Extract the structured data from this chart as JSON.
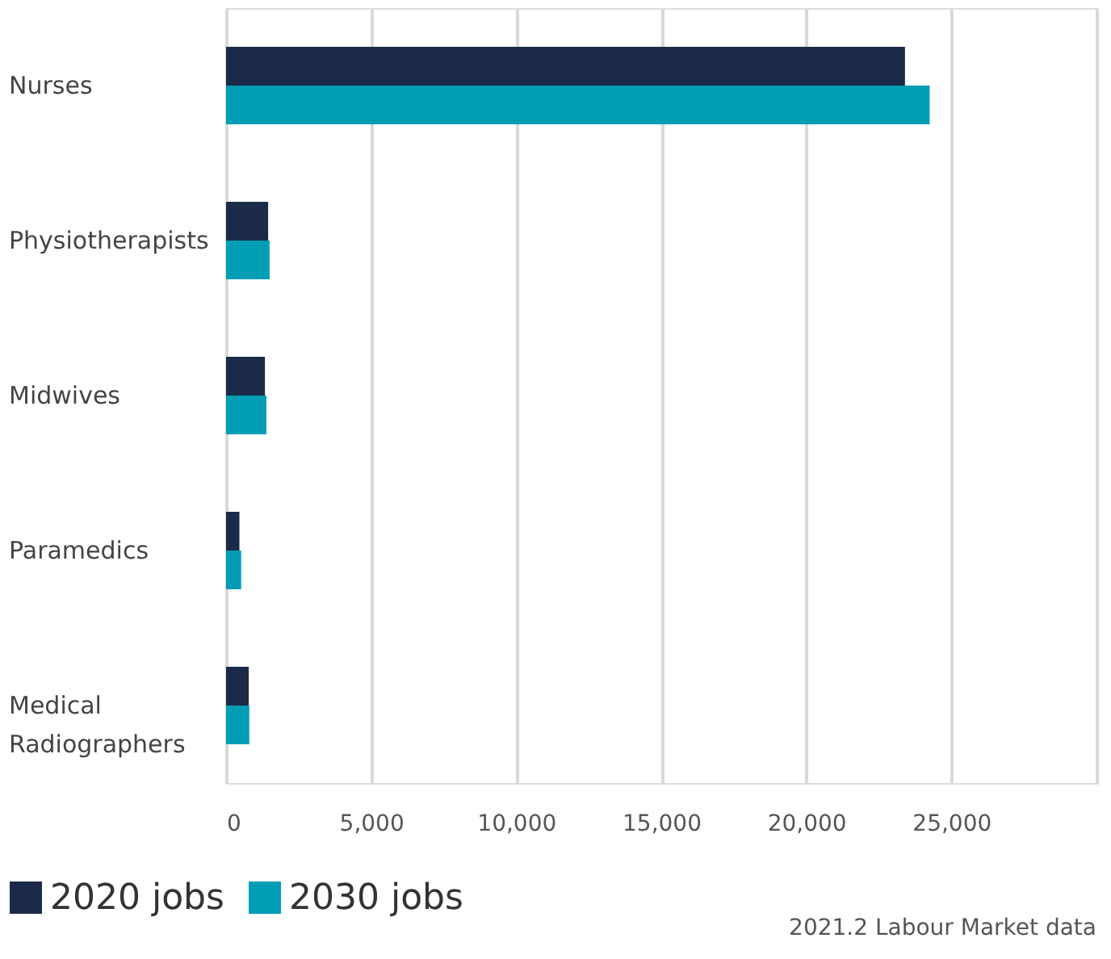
{
  "chart_data": {
    "type": "bar",
    "orientation": "horizontal",
    "categories": [
      "Nurses",
      "Physiotherapists",
      "Midwives",
      "Paramedics",
      "Medical Radiographers"
    ],
    "series": [
      {
        "name": "2020 jobs",
        "color": "#1a2a48",
        "values": [
          23400,
          1450,
          1340,
          460,
          780
        ]
      },
      {
        "name": "2030 jobs",
        "color": "#009db5",
        "values": [
          24250,
          1500,
          1390,
          520,
          800
        ]
      }
    ],
    "xlim": [
      0,
      30000
    ],
    "xticks": [
      {
        "value": 0,
        "label": "0"
      },
      {
        "value": 5000,
        "label": "5,000"
      },
      {
        "value": 10000,
        "label": "10,000"
      },
      {
        "value": 15000,
        "label": "15,000"
      },
      {
        "value": 20000,
        "label": "20,000"
      },
      {
        "value": 25000,
        "label": "25,000"
      },
      {
        "value": 30000,
        "label": null
      }
    ],
    "grid": "x",
    "legend": "bottom left",
    "annotations": [
      "2021.2 Labour Market data"
    ]
  }
}
